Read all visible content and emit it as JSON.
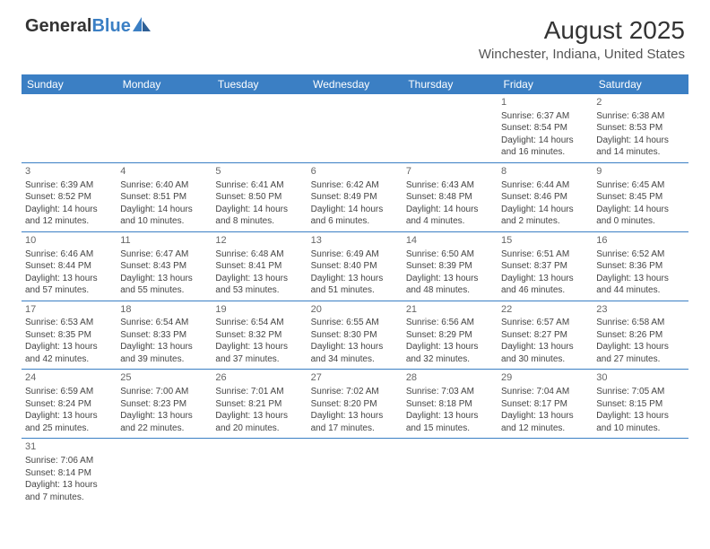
{
  "logo": {
    "part1": "General",
    "part2": "Blue"
  },
  "title": "August 2025",
  "location": "Winchester, Indiana, United States",
  "colors": {
    "header_bg": "#3b7fc4",
    "header_fg": "#ffffff",
    "border": "#3b7fc4"
  },
  "weekdays": [
    "Sunday",
    "Monday",
    "Tuesday",
    "Wednesday",
    "Thursday",
    "Friday",
    "Saturday"
  ],
  "weeks": [
    [
      null,
      null,
      null,
      null,
      null,
      {
        "n": "1",
        "sr": "Sunrise: 6:37 AM",
        "ss": "Sunset: 8:54 PM",
        "dl1": "Daylight: 14 hours",
        "dl2": "and 16 minutes."
      },
      {
        "n": "2",
        "sr": "Sunrise: 6:38 AM",
        "ss": "Sunset: 8:53 PM",
        "dl1": "Daylight: 14 hours",
        "dl2": "and 14 minutes."
      }
    ],
    [
      {
        "n": "3",
        "sr": "Sunrise: 6:39 AM",
        "ss": "Sunset: 8:52 PM",
        "dl1": "Daylight: 14 hours",
        "dl2": "and 12 minutes."
      },
      {
        "n": "4",
        "sr": "Sunrise: 6:40 AM",
        "ss": "Sunset: 8:51 PM",
        "dl1": "Daylight: 14 hours",
        "dl2": "and 10 minutes."
      },
      {
        "n": "5",
        "sr": "Sunrise: 6:41 AM",
        "ss": "Sunset: 8:50 PM",
        "dl1": "Daylight: 14 hours",
        "dl2": "and 8 minutes."
      },
      {
        "n": "6",
        "sr": "Sunrise: 6:42 AM",
        "ss": "Sunset: 8:49 PM",
        "dl1": "Daylight: 14 hours",
        "dl2": "and 6 minutes."
      },
      {
        "n": "7",
        "sr": "Sunrise: 6:43 AM",
        "ss": "Sunset: 8:48 PM",
        "dl1": "Daylight: 14 hours",
        "dl2": "and 4 minutes."
      },
      {
        "n": "8",
        "sr": "Sunrise: 6:44 AM",
        "ss": "Sunset: 8:46 PM",
        "dl1": "Daylight: 14 hours",
        "dl2": "and 2 minutes."
      },
      {
        "n": "9",
        "sr": "Sunrise: 6:45 AM",
        "ss": "Sunset: 8:45 PM",
        "dl1": "Daylight: 14 hours",
        "dl2": "and 0 minutes."
      }
    ],
    [
      {
        "n": "10",
        "sr": "Sunrise: 6:46 AM",
        "ss": "Sunset: 8:44 PM",
        "dl1": "Daylight: 13 hours",
        "dl2": "and 57 minutes."
      },
      {
        "n": "11",
        "sr": "Sunrise: 6:47 AM",
        "ss": "Sunset: 8:43 PM",
        "dl1": "Daylight: 13 hours",
        "dl2": "and 55 minutes."
      },
      {
        "n": "12",
        "sr": "Sunrise: 6:48 AM",
        "ss": "Sunset: 8:41 PM",
        "dl1": "Daylight: 13 hours",
        "dl2": "and 53 minutes."
      },
      {
        "n": "13",
        "sr": "Sunrise: 6:49 AM",
        "ss": "Sunset: 8:40 PM",
        "dl1": "Daylight: 13 hours",
        "dl2": "and 51 minutes."
      },
      {
        "n": "14",
        "sr": "Sunrise: 6:50 AM",
        "ss": "Sunset: 8:39 PM",
        "dl1": "Daylight: 13 hours",
        "dl2": "and 48 minutes."
      },
      {
        "n": "15",
        "sr": "Sunrise: 6:51 AM",
        "ss": "Sunset: 8:37 PM",
        "dl1": "Daylight: 13 hours",
        "dl2": "and 46 minutes."
      },
      {
        "n": "16",
        "sr": "Sunrise: 6:52 AM",
        "ss": "Sunset: 8:36 PM",
        "dl1": "Daylight: 13 hours",
        "dl2": "and 44 minutes."
      }
    ],
    [
      {
        "n": "17",
        "sr": "Sunrise: 6:53 AM",
        "ss": "Sunset: 8:35 PM",
        "dl1": "Daylight: 13 hours",
        "dl2": "and 42 minutes."
      },
      {
        "n": "18",
        "sr": "Sunrise: 6:54 AM",
        "ss": "Sunset: 8:33 PM",
        "dl1": "Daylight: 13 hours",
        "dl2": "and 39 minutes."
      },
      {
        "n": "19",
        "sr": "Sunrise: 6:54 AM",
        "ss": "Sunset: 8:32 PM",
        "dl1": "Daylight: 13 hours",
        "dl2": "and 37 minutes."
      },
      {
        "n": "20",
        "sr": "Sunrise: 6:55 AM",
        "ss": "Sunset: 8:30 PM",
        "dl1": "Daylight: 13 hours",
        "dl2": "and 34 minutes."
      },
      {
        "n": "21",
        "sr": "Sunrise: 6:56 AM",
        "ss": "Sunset: 8:29 PM",
        "dl1": "Daylight: 13 hours",
        "dl2": "and 32 minutes."
      },
      {
        "n": "22",
        "sr": "Sunrise: 6:57 AM",
        "ss": "Sunset: 8:27 PM",
        "dl1": "Daylight: 13 hours",
        "dl2": "and 30 minutes."
      },
      {
        "n": "23",
        "sr": "Sunrise: 6:58 AM",
        "ss": "Sunset: 8:26 PM",
        "dl1": "Daylight: 13 hours",
        "dl2": "and 27 minutes."
      }
    ],
    [
      {
        "n": "24",
        "sr": "Sunrise: 6:59 AM",
        "ss": "Sunset: 8:24 PM",
        "dl1": "Daylight: 13 hours",
        "dl2": "and 25 minutes."
      },
      {
        "n": "25",
        "sr": "Sunrise: 7:00 AM",
        "ss": "Sunset: 8:23 PM",
        "dl1": "Daylight: 13 hours",
        "dl2": "and 22 minutes."
      },
      {
        "n": "26",
        "sr": "Sunrise: 7:01 AM",
        "ss": "Sunset: 8:21 PM",
        "dl1": "Daylight: 13 hours",
        "dl2": "and 20 minutes."
      },
      {
        "n": "27",
        "sr": "Sunrise: 7:02 AM",
        "ss": "Sunset: 8:20 PM",
        "dl1": "Daylight: 13 hours",
        "dl2": "and 17 minutes."
      },
      {
        "n": "28",
        "sr": "Sunrise: 7:03 AM",
        "ss": "Sunset: 8:18 PM",
        "dl1": "Daylight: 13 hours",
        "dl2": "and 15 minutes."
      },
      {
        "n": "29",
        "sr": "Sunrise: 7:04 AM",
        "ss": "Sunset: 8:17 PM",
        "dl1": "Daylight: 13 hours",
        "dl2": "and 12 minutes."
      },
      {
        "n": "30",
        "sr": "Sunrise: 7:05 AM",
        "ss": "Sunset: 8:15 PM",
        "dl1": "Daylight: 13 hours",
        "dl2": "and 10 minutes."
      }
    ],
    [
      {
        "n": "31",
        "sr": "Sunrise: 7:06 AM",
        "ss": "Sunset: 8:14 PM",
        "dl1": "Daylight: 13 hours",
        "dl2": "and 7 minutes."
      },
      null,
      null,
      null,
      null,
      null,
      null
    ]
  ]
}
